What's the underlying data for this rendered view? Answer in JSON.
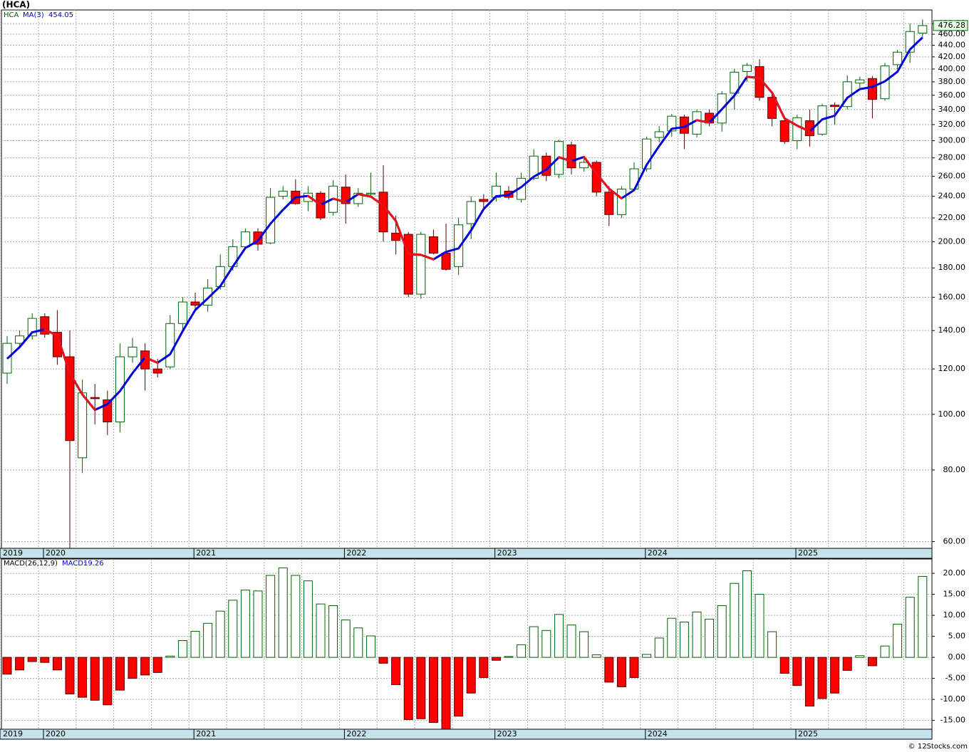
{
  "chart_data": [
    {
      "type": "candlestick",
      "title": "(HCA)",
      "categories": [
        "2019",
        null,
        null,
        "2020",
        null,
        null,
        null,
        null,
        null,
        null,
        null,
        null,
        null,
        null,
        null,
        "2021",
        null,
        null,
        null,
        null,
        null,
        null,
        null,
        null,
        null,
        null,
        null,
        "2022",
        null,
        null,
        null,
        null,
        null,
        null,
        null,
        null,
        null,
        null,
        null,
        "2023",
        null,
        null,
        null,
        null,
        null,
        null,
        null,
        null,
        null,
        null,
        null,
        "2024",
        null,
        null,
        null,
        null,
        null,
        null,
        null,
        null,
        null,
        null,
        null,
        "2025",
        null,
        null,
        null,
        null,
        null,
        null,
        null,
        null,
        null,
        null
      ],
      "series": [
        {
          "name": "HCA",
          "color": "#006400",
          "down_color": "#ff0000",
          "open": [
            118,
            133,
            137,
            148,
            139,
            126,
            84,
            107,
            106,
            97,
            126,
            129,
            120,
            121,
            144,
            157,
            155,
            167,
            181,
            196,
            208,
            199,
            240,
            245,
            235,
            243,
            225,
            249,
            233,
            242,
            244,
            207,
            206,
            162,
            204,
            191,
            181,
            215,
            237,
            239,
            245,
            237,
            258,
            282,
            262,
            295,
            269,
            275,
            244,
            223,
            247,
            268,
            304,
            312,
            330,
            308,
            335,
            322,
            363,
            396,
            404,
            357,
            325,
            300,
            325,
            308,
            346,
            344,
            378,
            385,
            355,
            407,
            428,
            462
          ],
          "high": [
            137,
            140,
            150,
            150,
            152,
            140,
            115,
            113,
            110,
            133,
            136,
            133,
            125,
            149,
            160,
            163,
            172,
            190,
            202,
            211,
            211,
            248,
            250,
            257,
            250,
            245,
            256,
            262,
            248,
            264,
            272,
            222,
            208,
            208,
            210,
            215,
            220,
            240,
            242,
            264,
            250,
            264,
            290,
            286,
            301,
            299,
            282,
            277,
            250,
            250,
            275,
            305,
            318,
            334,
            333,
            340,
            340,
            366,
            400,
            410,
            416,
            364,
            330,
            333,
            340,
            348,
            350,
            390,
            388,
            389,
            410,
            432,
            480,
            488
          ],
          "low": [
            113,
            131,
            135,
            136,
            122,
            58.5,
            79,
            96,
            92,
            93,
            123,
            110,
            116,
            120,
            140,
            152,
            151,
            165,
            178,
            194,
            193,
            198,
            237,
            232,
            226,
            218,
            222,
            215,
            230,
            240,
            200,
            190,
            160,
            159,
            190,
            178,
            175,
            202,
            228,
            235,
            237,
            234,
            256,
            255,
            258,
            262,
            265,
            240,
            213,
            220,
            245,
            265,
            298,
            305,
            290,
            304,
            318,
            311,
            340,
            380,
            352,
            318,
            296,
            290,
            293,
            306,
            320,
            340,
            371,
            328,
            352,
            400,
            410,
            455
          ],
          "close": [
            133,
            137,
            147,
            138,
            126,
            90,
            109,
            106.5,
            97,
            126,
            131,
            120,
            118,
            144,
            157,
            155,
            166,
            181,
            196,
            208,
            198,
            239,
            245,
            233,
            243,
            220,
            250,
            233,
            243,
            243,
            208,
            201,
            162,
            206,
            191,
            179,
            214,
            235,
            235,
            250,
            239,
            258,
            282,
            261,
            299,
            269,
            275,
            244,
            223,
            247,
            268,
            302,
            311,
            331,
            309,
            337,
            322,
            362,
            395,
            406,
            357,
            328,
            299,
            329,
            306,
            345,
            344,
            380,
            383,
            354,
            405,
            428,
            465,
            476.28
          ]
        },
        {
          "name": "MA(3)",
          "color": "#0000dd",
          "down_color": "#ee1111",
          "values": [
            125,
            131,
            139,
            140.7,
            137,
            118,
            108.3,
            101.8,
            104.2,
            109.8,
            118,
            125.7,
            123,
            127.3,
            139.7,
            152,
            159.3,
            167.3,
            181,
            195,
            200.7,
            215,
            227.3,
            239,
            240.3,
            232,
            237.7,
            234.3,
            242,
            239.7,
            231.3,
            217.3,
            190.3,
            189.7,
            186.3,
            192,
            194.7,
            209.3,
            228,
            240,
            241.3,
            249,
            259.7,
            267,
            280.7,
            276.3,
            281,
            262.7,
            247.3,
            238,
            246,
            272.3,
            293.7,
            314.7,
            317,
            325.7,
            322.7,
            340.3,
            359.7,
            387.7,
            386,
            363.7,
            328,
            318.7,
            311.3,
            326.7,
            331.7,
            356.3,
            369,
            372.3,
            380.7,
            395.7,
            432.7,
            454.05
          ]
        }
      ],
      "log_scale": true,
      "grid": true,
      "ylim": [
        58.4,
        507
      ],
      "yticks": [
        {
          "value": 60,
          "label": "60.00"
        },
        {
          "value": 80,
          "label": "80.00"
        },
        {
          "value": 100,
          "label": "100.00"
        },
        {
          "value": 120,
          "label": "120.00"
        },
        {
          "value": 140,
          "label": "140.00"
        },
        {
          "value": 160,
          "label": "160.00"
        },
        {
          "value": 180,
          "label": "180.00"
        },
        {
          "value": 200,
          "label": "200.00"
        },
        {
          "value": 220,
          "label": "220.00"
        },
        {
          "value": 240,
          "label": "240.00"
        },
        {
          "value": 260,
          "label": "260.00"
        },
        {
          "value": 280,
          "label": "280.00"
        },
        {
          "value": 300,
          "label": "300.00"
        },
        {
          "value": 320,
          "label": "320.00"
        },
        {
          "value": 340,
          "label": "340.00"
        },
        {
          "value": 360,
          "label": "360.00"
        },
        {
          "value": 380,
          "label": "380.00"
        },
        {
          "value": 400,
          "label": "400.00"
        },
        {
          "value": 420,
          "label": "420.00"
        },
        {
          "value": 440,
          "label": "440.00"
        },
        {
          "value": 460,
          "label": "460.00"
        },
        {
          "value": 480,
          "label": "480.00"
        }
      ]
    },
    {
      "type": "bar",
      "name": "MACD(26,12,9)",
      "current_label": "MACD:",
      "color": "#006400",
      "down_color": "#ff0000",
      "values": [
        -4,
        -3,
        -1,
        -1.2,
        -3,
        -8.7,
        -9.5,
        -10.2,
        -11.3,
        -7.8,
        -5,
        -4.2,
        -3.6,
        0.3,
        4,
        6.2,
        8.1,
        11,
        13.6,
        16,
        15.8,
        19.5,
        21.3,
        19.5,
        18.2,
        12.7,
        12.3,
        8.9,
        7,
        5.1,
        -1.4,
        -6.5,
        -14.8,
        -14.6,
        -15.5,
        -17.1,
        -14,
        -8.5,
        -4.8,
        -0.7,
        0.2,
        3,
        7.3,
        6.4,
        10.2,
        7.7,
        6.1,
        0.6,
        -5.9,
        -7,
        -4.8,
        0.7,
        4.6,
        9.3,
        8.4,
        10.8,
        9.1,
        12.3,
        17.6,
        20.6,
        15,
        6.1,
        -3.8,
        -6.7,
        -11.6,
        -9.8,
        -8.5,
        -3.1,
        0.4,
        -2,
        2.7,
        7.9,
        14.3,
        19.26
      ],
      "ylim": [
        -17.1,
        23.4
      ],
      "grid": true,
      "yticks": [
        {
          "value": 20,
          "label": "20.00"
        },
        {
          "value": 15,
          "label": "15.00"
        },
        {
          "value": 10,
          "label": "10.00"
        },
        {
          "value": 5,
          "label": "5.00"
        },
        {
          "value": 0,
          "label": "0.00"
        },
        {
          "value": -5,
          "label": "-5.00"
        },
        {
          "value": -10,
          "label": "-10.00"
        },
        {
          "value": -15,
          "label": "-15.00"
        }
      ]
    }
  ],
  "watermark": "© 12Stocks.com"
}
